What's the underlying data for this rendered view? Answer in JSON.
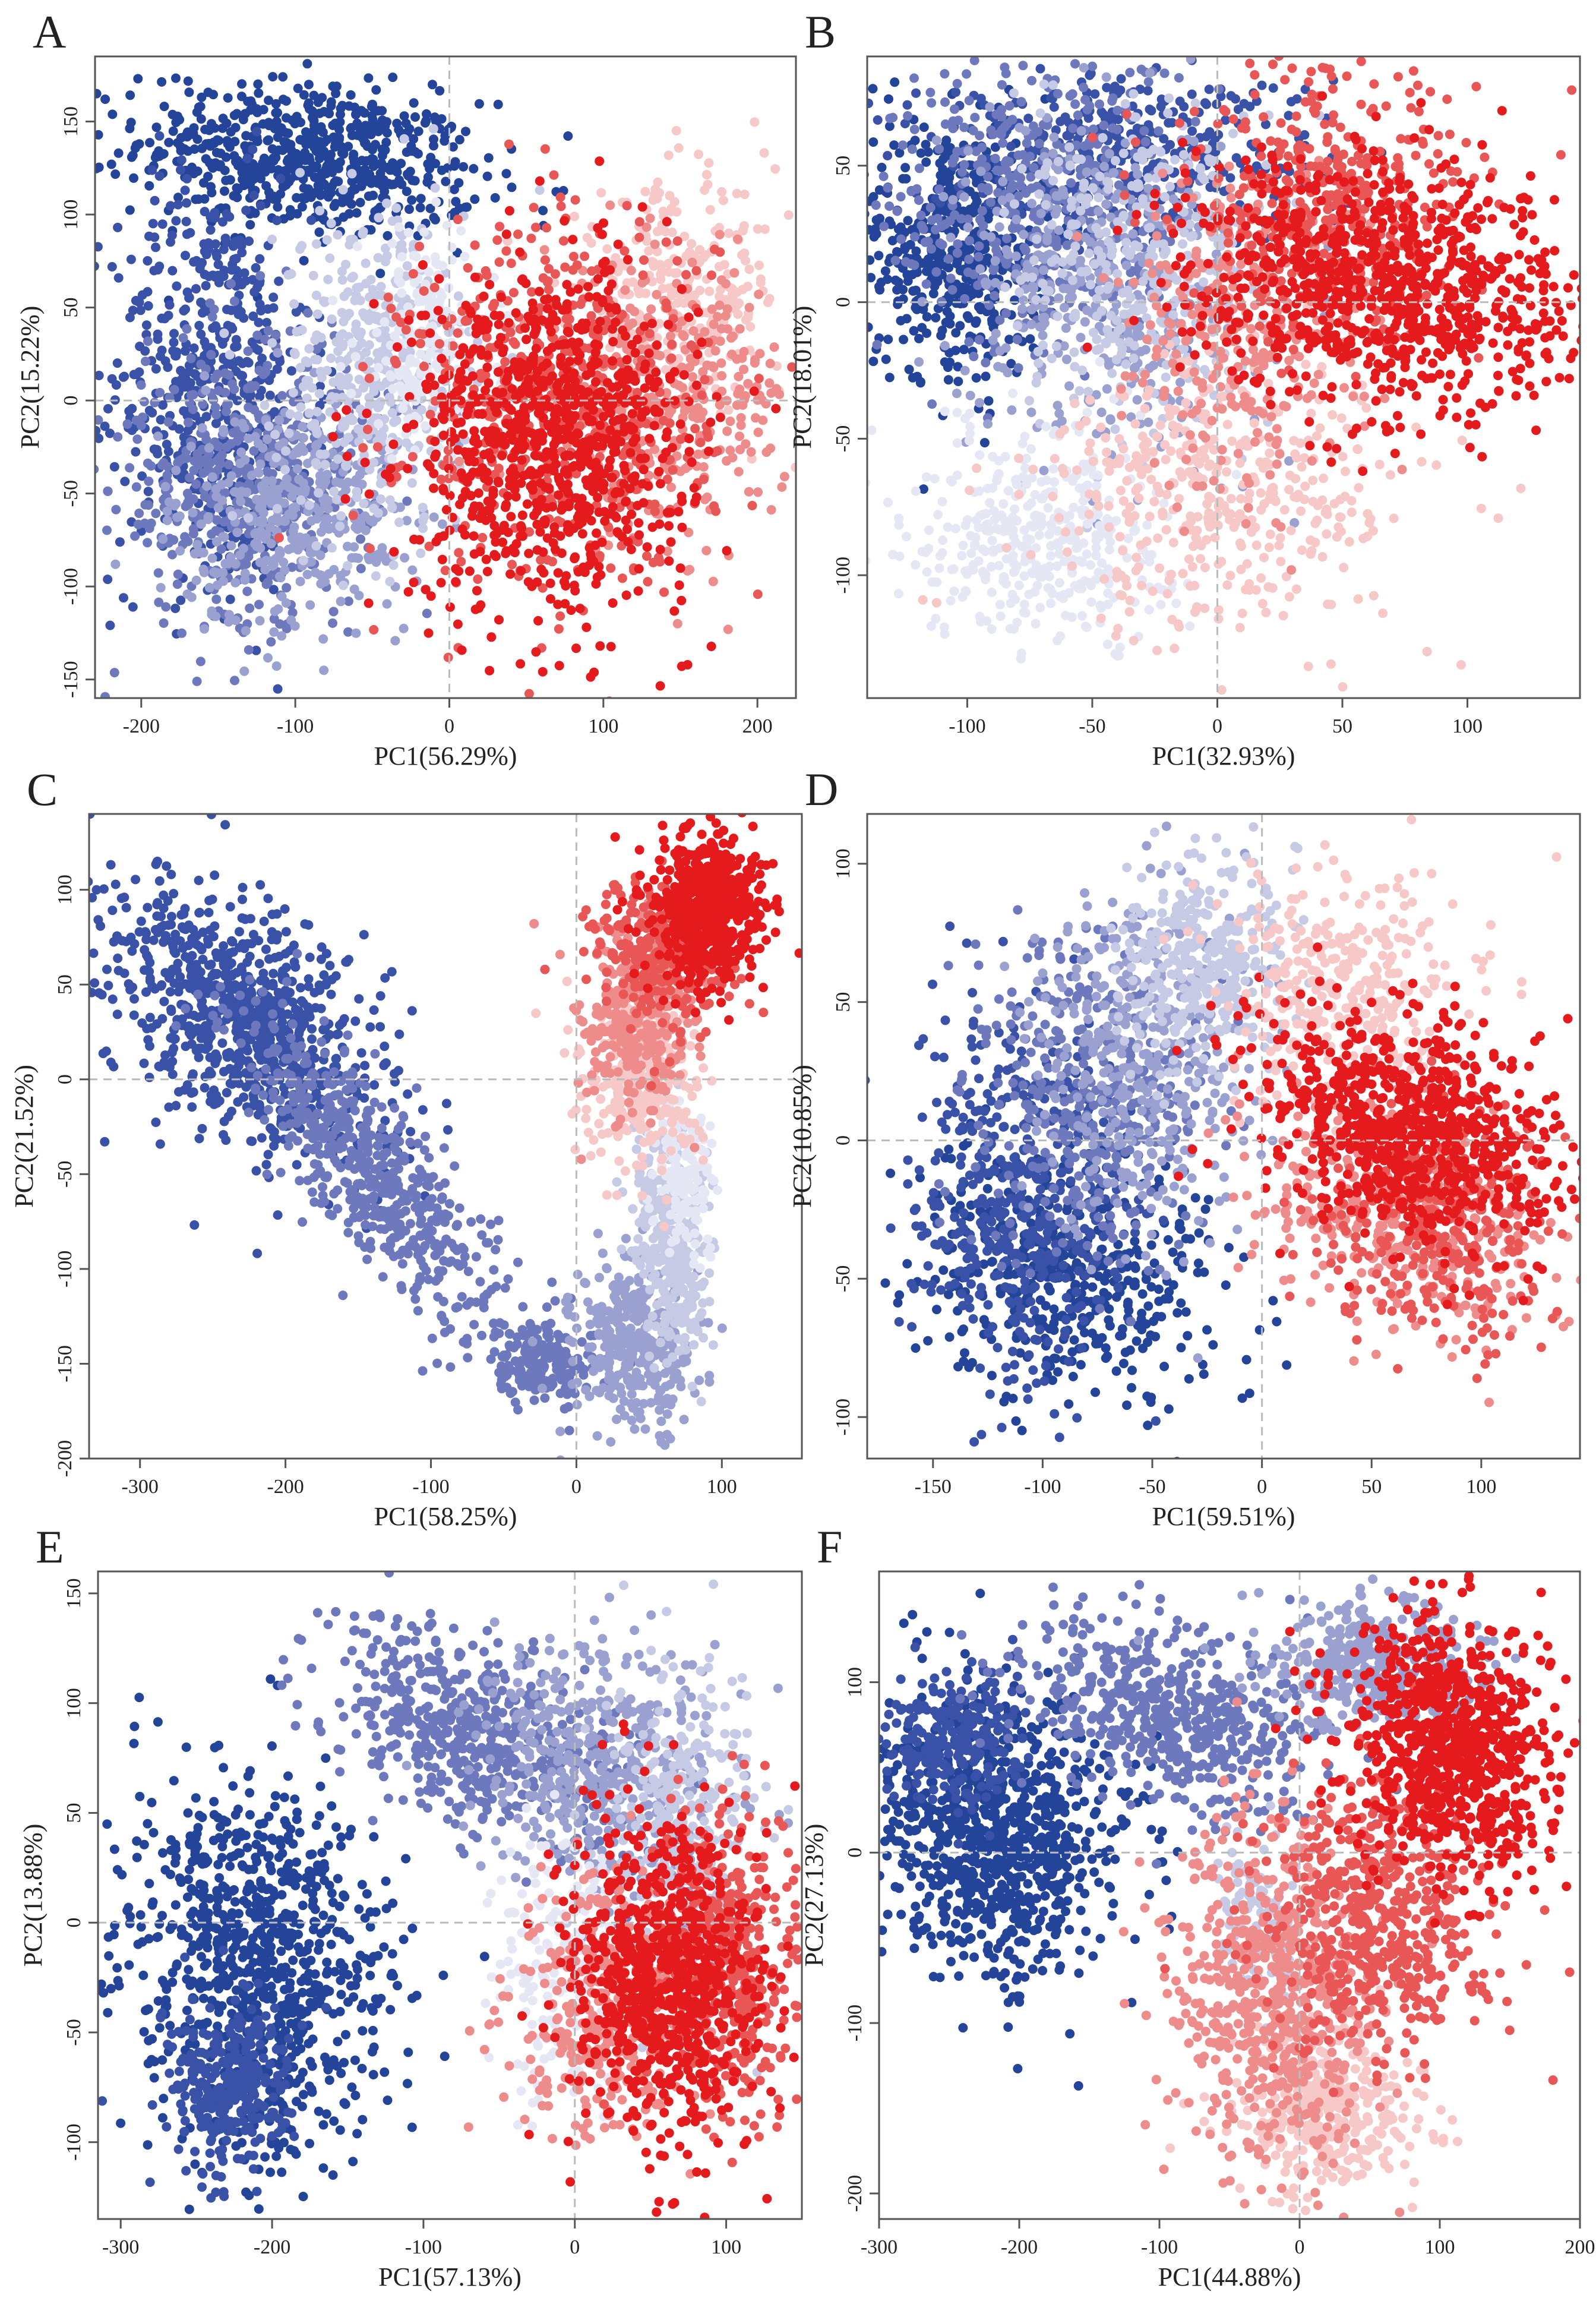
{
  "figure": {
    "description": "Six PCA scatter panels (A-F); points coloured on a blue-white-red gradient.",
    "palette": {
      "blue": "#24449a",
      "white": "#eef0f8",
      "red": "#e41a1c"
    }
  },
  "chart_data": [
    {
      "type": "scatter",
      "panel": "A",
      "xlabel": "PC1(56.29%)",
      "ylabel": "PC2(15.22%)",
      "xlim": [
        -230,
        225
      ],
      "ylim": [
        -160,
        185
      ],
      "xticks": [
        -200,
        -100,
        0,
        100,
        200
      ],
      "yticks": [
        -150,
        -100,
        -50,
        0,
        50,
        100,
        150
      ],
      "reference_lines": {
        "x": 0,
        "y": 0
      },
      "clusters": [
        {
          "color": "#24449a",
          "cx": -90,
          "cy": 130,
          "sx": 55,
          "sy": 20,
          "rot": -5,
          "n": 650
        },
        {
          "color": "#3a51a8",
          "cx": -155,
          "cy": 10,
          "sx": 32,
          "sy": 55,
          "rot": 0,
          "n": 550
        },
        {
          "color": "#6e79bd",
          "cx": -130,
          "cy": -40,
          "sx": 40,
          "sy": 38,
          "rot": 20,
          "n": 500
        },
        {
          "color": "#9aa0cf",
          "cx": -100,
          "cy": -60,
          "sx": 40,
          "sy": 30,
          "rot": 10,
          "n": 400
        },
        {
          "color": "#c7cae5",
          "cx": -50,
          "cy": 15,
          "sx": 30,
          "sy": 45,
          "rot": 0,
          "n": 420
        },
        {
          "color": "#e6e7f4",
          "cx": -15,
          "cy": 30,
          "sx": 22,
          "sy": 30,
          "rot": 0,
          "n": 200
        },
        {
          "color": "#f7c8c8",
          "cx": 150,
          "cy": 55,
          "sx": 35,
          "sy": 30,
          "rot": 10,
          "n": 280
        },
        {
          "color": "#ee8b8b",
          "cx": 140,
          "cy": 0,
          "sx": 40,
          "sy": 35,
          "rot": 0,
          "n": 350
        },
        {
          "color": "#e85656",
          "cx": 70,
          "cy": 0,
          "sx": 50,
          "sy": 50,
          "rot": 0,
          "n": 520
        },
        {
          "color": "#e41a1c",
          "cx": 65,
          "cy": -20,
          "sx": 45,
          "sy": 45,
          "rot": 0,
          "n": 900
        }
      ]
    },
    {
      "type": "scatter",
      "panel": "B",
      "xlabel": "PC1(32.93%)",
      "ylabel": "PC2(18.01%)",
      "xlim": [
        -140,
        145
      ],
      "ylim": [
        -145,
        90
      ],
      "xticks": [
        -100,
        -50,
        0,
        50,
        100
      ],
      "yticks": [
        -100,
        -50,
        0,
        50
      ],
      "reference_lines": {
        "x": 0,
        "y": 0
      },
      "clusters": [
        {
          "color": "#24449a",
          "cx": -105,
          "cy": 20,
          "sx": 18,
          "sy": 25,
          "rot": 0,
          "n": 500
        },
        {
          "color": "#3a51a8",
          "cx": -40,
          "cy": 55,
          "sx": 40,
          "sy": 15,
          "rot": 0,
          "n": 400
        },
        {
          "color": "#6e79bd",
          "cx": -70,
          "cy": 35,
          "sx": 30,
          "sy": 28,
          "rot": 0,
          "n": 450
        },
        {
          "color": "#9aa0cf",
          "cx": -45,
          "cy": 5,
          "sx": 28,
          "sy": 30,
          "rot": 0,
          "n": 400
        },
        {
          "color": "#c7cae5",
          "cx": -30,
          "cy": 10,
          "sx": 25,
          "sy": 30,
          "rot": 0,
          "n": 350
        },
        {
          "color": "#e6e7f4",
          "cx": -70,
          "cy": -85,
          "sx": 25,
          "sy": 20,
          "rot": 0,
          "n": 400
        },
        {
          "color": "#f7c8c8",
          "cx": 5,
          "cy": -70,
          "sx": 38,
          "sy": 25,
          "rot": 0,
          "n": 420
        },
        {
          "color": "#ee8b8b",
          "cx": 10,
          "cy": -10,
          "sx": 25,
          "sy": 30,
          "rot": 0,
          "n": 300
        },
        {
          "color": "#e85656",
          "cx": 45,
          "cy": 35,
          "sx": 30,
          "sy": 25,
          "rot": 0,
          "n": 400
        },
        {
          "color": "#e41a1c",
          "cx": 70,
          "cy": 5,
          "sx": 40,
          "sy": 22,
          "rot": -10,
          "n": 900
        }
      ]
    },
    {
      "type": "scatter",
      "panel": "C",
      "xlabel": "PC1(58.25%)",
      "ylabel": "PC2(21.52%)",
      "xlim": [
        -335,
        155
      ],
      "ylim": [
        -200,
        140
      ],
      "xticks": [
        -300,
        -200,
        -100,
        0,
        100
      ],
      "yticks": [
        -200,
        -150,
        -100,
        -50,
        0,
        50,
        100
      ],
      "reference_lines": {
        "x": 0,
        "y": 0
      },
      "clusters": [
        {
          "color": "#3a51a8",
          "cx": -225,
          "cy": 30,
          "sx": 50,
          "sy": 28,
          "rot": -30,
          "n": 850
        },
        {
          "color": "#6e79bd",
          "cx": -140,
          "cy": -50,
          "sx": 60,
          "sy": 18,
          "rot": -42,
          "n": 550
        },
        {
          "color": "#6e79bd",
          "cx": -25,
          "cy": -150,
          "sx": 22,
          "sy": 10,
          "rot": -10,
          "n": 180
        },
        {
          "color": "#9aa0cf",
          "cx": 40,
          "cy": -140,
          "sx": 20,
          "sy": 22,
          "rot": 0,
          "n": 350
        },
        {
          "color": "#c7cae5",
          "cx": 65,
          "cy": -85,
          "sx": 12,
          "sy": 30,
          "rot": 10,
          "n": 350
        },
        {
          "color": "#e6e7f4",
          "cx": 75,
          "cy": -50,
          "sx": 10,
          "sy": 20,
          "rot": 0,
          "n": 150
        },
        {
          "color": "#f7c8c8",
          "cx": 45,
          "cy": 0,
          "sx": 20,
          "sy": 25,
          "rot": 0,
          "n": 300
        },
        {
          "color": "#ee8b8b",
          "cx": 40,
          "cy": 30,
          "sx": 20,
          "sy": 25,
          "rot": 0,
          "n": 300
        },
        {
          "color": "#e85656",
          "cx": 60,
          "cy": 65,
          "sx": 22,
          "sy": 20,
          "rot": 0,
          "n": 300
        },
        {
          "color": "#e41a1c",
          "cx": 90,
          "cy": 90,
          "sx": 20,
          "sy": 20,
          "rot": -15,
          "n": 600
        }
      ]
    },
    {
      "type": "scatter",
      "panel": "D",
      "xlabel": "PC1(59.51%)",
      "ylabel": "PC2(10.85%)",
      "xlim": [
        -180,
        145
      ],
      "ylim": [
        -115,
        118
      ],
      "xticks": [
        -150,
        -100,
        -50,
        0,
        50,
        100
      ],
      "yticks": [
        -100,
        -50,
        0,
        50,
        100
      ],
      "reference_lines": {
        "x": 0,
        "y": 0
      },
      "clusters": [
        {
          "color": "#24449a",
          "cx": -85,
          "cy": -50,
          "sx": 35,
          "sy": 22,
          "rot": 0,
          "n": 450
        },
        {
          "color": "#3a51a8",
          "cx": -110,
          "cy": -20,
          "sx": 25,
          "sy": 30,
          "rot": 0,
          "n": 500
        },
        {
          "color": "#6e79bd",
          "cx": -80,
          "cy": 15,
          "sx": 25,
          "sy": 30,
          "rot": 0,
          "n": 400
        },
        {
          "color": "#9aa0cf",
          "cx": -55,
          "cy": 30,
          "sx": 25,
          "sy": 30,
          "rot": 0,
          "n": 400
        },
        {
          "color": "#c7cae5",
          "cx": -25,
          "cy": 65,
          "sx": 20,
          "sy": 20,
          "rot": 0,
          "n": 350
        },
        {
          "color": "#f7c8c8",
          "cx": 40,
          "cy": 55,
          "sx": 28,
          "sy": 20,
          "rot": 0,
          "n": 350
        },
        {
          "color": "#ee8b8b",
          "cx": 60,
          "cy": -25,
          "sx": 35,
          "sy": 20,
          "rot": -20,
          "n": 400
        },
        {
          "color": "#e85656",
          "cx": 80,
          "cy": -30,
          "sx": 25,
          "sy": 22,
          "rot": 0,
          "n": 350
        },
        {
          "color": "#e41a1c",
          "cx": 65,
          "cy": 5,
          "sx": 35,
          "sy": 20,
          "rot": -15,
          "n": 800
        }
      ]
    },
    {
      "type": "scatter",
      "panel": "E",
      "xlabel": "PC1(57.13%)",
      "ylabel": "PC2(13.88%)",
      "xlim": [
        -315,
        150
      ],
      "ylim": [
        -135,
        160
      ],
      "xticks": [
        -300,
        -200,
        -100,
        0,
        100
      ],
      "yticks": [
        -100,
        -50,
        0,
        50,
        100,
        150
      ],
      "reference_lines": {
        "x": 0,
        "y": 0
      },
      "clusters": [
        {
          "color": "#24449a",
          "cx": -210,
          "cy": -20,
          "sx": 45,
          "sy": 40,
          "rot": -40,
          "n": 850
        },
        {
          "color": "#3a51a8",
          "cx": -230,
          "cy": -75,
          "sx": 20,
          "sy": 20,
          "rot": 0,
          "n": 300
        },
        {
          "color": "#6e79bd",
          "cx": -70,
          "cy": 85,
          "sx": 50,
          "sy": 22,
          "rot": -20,
          "n": 550
        },
        {
          "color": "#9aa0cf",
          "cx": 20,
          "cy": 70,
          "sx": 40,
          "sy": 30,
          "rot": -10,
          "n": 450
        },
        {
          "color": "#c7cae5",
          "cx": 70,
          "cy": 45,
          "sx": 25,
          "sy": 40,
          "rot": 0,
          "n": 300
        },
        {
          "color": "#e6e7f4",
          "cx": -10,
          "cy": -20,
          "sx": 20,
          "sy": 30,
          "rot": 0,
          "n": 200
        },
        {
          "color": "#ee8b8b",
          "cx": 20,
          "cy": -40,
          "sx": 30,
          "sy": 30,
          "rot": 0,
          "n": 350
        },
        {
          "color": "#e85656",
          "cx": 100,
          "cy": -20,
          "sx": 28,
          "sy": 35,
          "rot": 0,
          "n": 400
        },
        {
          "color": "#e41a1c",
          "cx": 60,
          "cy": -25,
          "sx": 30,
          "sy": 35,
          "rot": 0,
          "n": 850
        }
      ]
    },
    {
      "type": "scatter",
      "panel": "F",
      "xlabel": "PC1(44.88%)",
      "ylabel": "PC2(27.13%)",
      "xlim": [
        -300,
        200
      ],
      "ylim": [
        -215,
        165
      ],
      "xticks": [
        -300,
        -200,
        -100,
        0,
        100,
        200
      ],
      "yticks": [
        -200,
        -100,
        0,
        100
      ],
      "reference_lines": {
        "x": 0,
        "y": 0
      },
      "clusters": [
        {
          "color": "#24449a",
          "cx": -215,
          "cy": 10,
          "sx": 45,
          "sy": 40,
          "rot": -30,
          "n": 850
        },
        {
          "color": "#3a51a8",
          "cx": -245,
          "cy": 65,
          "sx": 25,
          "sy": 20,
          "rot": 0,
          "n": 250
        },
        {
          "color": "#6e79bd",
          "cx": -90,
          "cy": 80,
          "sx": 55,
          "sy": 25,
          "rot": -15,
          "n": 550
        },
        {
          "color": "#9aa0cf",
          "cx": 50,
          "cy": 110,
          "sx": 40,
          "sy": 20,
          "rot": 0,
          "n": 350
        },
        {
          "color": "#c7cae5",
          "cx": -30,
          "cy": -40,
          "sx": 15,
          "sy": 30,
          "rot": 0,
          "n": 120
        },
        {
          "color": "#f7c8c8",
          "cx": 20,
          "cy": -150,
          "sx": 30,
          "sy": 25,
          "rot": 0,
          "n": 350
        },
        {
          "color": "#ee8b8b",
          "cx": -20,
          "cy": -90,
          "sx": 35,
          "sy": 50,
          "rot": 10,
          "n": 600
        },
        {
          "color": "#e85656",
          "cx": 60,
          "cy": -40,
          "sx": 40,
          "sy": 40,
          "rot": 20,
          "n": 550
        },
        {
          "color": "#e41a1c",
          "cx": 110,
          "cy": 60,
          "sx": 40,
          "sy": 35,
          "rot": -40,
          "n": 850
        }
      ]
    }
  ]
}
